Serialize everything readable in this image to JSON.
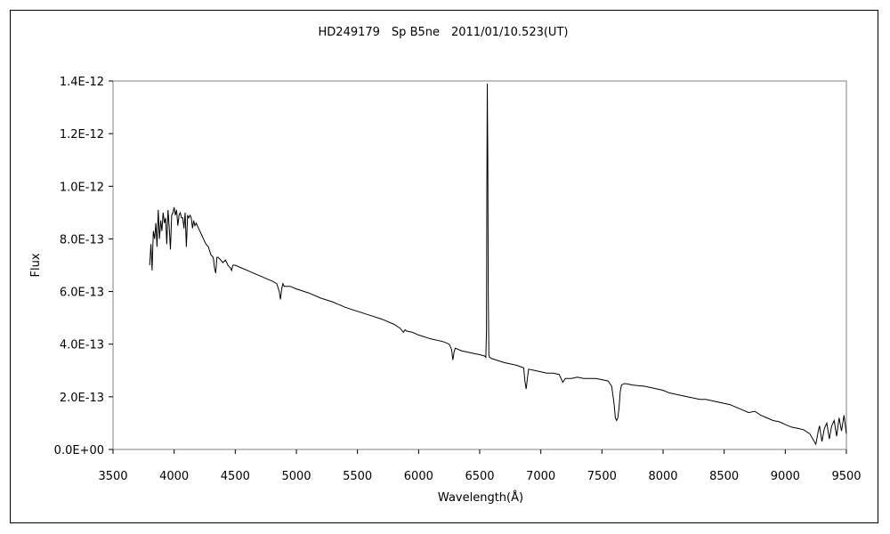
{
  "chart_data": {
    "type": "line",
    "title": "HD249179　Sp B5ne　2011/01/10.523(UT)",
    "xlabel": "Wavelength(Å)",
    "ylabel": "Flux",
    "xlim": [
      3500,
      9500
    ],
    "ylim": [
      0,
      1.4e-12
    ],
    "x_ticks": [
      "3500",
      "4000",
      "4500",
      "5000",
      "5500",
      "6000",
      "6500",
      "7000",
      "7500",
      "8000",
      "8500",
      "9000",
      "9500"
    ],
    "y_ticks": [
      "0.0E+00",
      "2.0E-13",
      "4.0E-13",
      "6.0E-13",
      "8.0E-13",
      "1.0E-12",
      "1.2E-12",
      "1.4E-12"
    ],
    "grid": false,
    "legend": "none",
    "series": [
      {
        "color": "#000000",
        "x": [
          3800,
          3810,
          3820,
          3830,
          3840,
          3850,
          3860,
          3870,
          3880,
          3890,
          3900,
          3910,
          3920,
          3930,
          3940,
          3950,
          3960,
          3970,
          3980,
          3990,
          4000,
          4010,
          4020,
          4030,
          4040,
          4050,
          4060,
          4070,
          4080,
          4090,
          4100,
          4110,
          4120,
          4130,
          4140,
          4150,
          4160,
          4170,
          4180,
          4190,
          4200,
          4220,
          4240,
          4260,
          4280,
          4300,
          4320,
          4330,
          4340,
          4350,
          4360,
          4380,
          4400,
          4420,
          4440,
          4460,
          4470,
          4480,
          4500,
          4550,
          4600,
          4650,
          4700,
          4750,
          4800,
          4840,
          4860,
          4870,
          4880,
          4890,
          4900,
          4950,
          5000,
          5100,
          5200,
          5300,
          5400,
          5500,
          5600,
          5700,
          5800,
          5850,
          5875,
          5890,
          5900,
          5950,
          6000,
          6100,
          6200,
          6250,
          6270,
          6280,
          6290,
          6300,
          6350,
          6400,
          6450,
          6500,
          6540,
          6550,
          6555,
          6558,
          6562,
          6566,
          6570,
          6575,
          6580,
          6600,
          6700,
          6800,
          6860,
          6870,
          6880,
          6890,
          6900,
          6950,
          7000,
          7050,
          7100,
          7150,
          7180,
          7200,
          7250,
          7300,
          7350,
          7400,
          7450,
          7500,
          7550,
          7580,
          7600,
          7610,
          7620,
          7630,
          7640,
          7650,
          7660,
          7680,
          7700,
          7750,
          7800,
          7850,
          7900,
          7950,
          8000,
          8050,
          8100,
          8150,
          8200,
          8250,
          8300,
          8350,
          8400,
          8450,
          8500,
          8550,
          8600,
          8650,
          8700,
          8750,
          8800,
          8850,
          8900,
          8950,
          9000,
          9050,
          9100,
          9150,
          9200,
          9250,
          9270,
          9280,
          9300,
          9320,
          9340,
          9360,
          9380,
          9400,
          9420,
          9440,
          9460,
          9480,
          9500
        ],
        "y": [
          7e-13,
          7.8e-13,
          6.8e-13,
          8.3e-13,
          8e-13,
          8.6e-13,
          7.7e-13,
          9.1e-13,
          8e-13,
          8.7e-13,
          8.3e-13,
          9e-13,
          8.6e-13,
          8.8e-13,
          7.8e-13,
          9.1e-13,
          8.4e-13,
          7.6e-13,
          8.9e-13,
          9e-13,
          9.2e-13,
          8.9e-13,
          9.1e-13,
          8.5e-13,
          8.9e-13,
          9e-13,
          8.8e-13,
          8.8e-13,
          8.4e-13,
          9e-13,
          7.7e-13,
          8.9e-13,
          8.8e-13,
          8.9e-13,
          8.8e-13,
          8.4e-13,
          8.7e-13,
          8.5e-13,
          8.6e-13,
          8.5e-13,
          8.4e-13,
          8.2e-13,
          8e-13,
          7.8e-13,
          7.7e-13,
          7.4e-13,
          7.3e-13,
          6.9e-13,
          6.7e-13,
          7.3e-13,
          7.3e-13,
          7.2e-13,
          7.1e-13,
          7.2e-13,
          7e-13,
          6.9e-13,
          6.8e-13,
          7e-13,
          7e-13,
          6.9e-13,
          6.8e-13,
          6.7e-13,
          6.6e-13,
          6.5e-13,
          6.4e-13,
          6.3e-13,
          6e-13,
          5.7e-13,
          6.1e-13,
          6.3e-13,
          6.2e-13,
          6.2e-13,
          6.1e-13,
          5.95e-13,
          5.75e-13,
          5.6e-13,
          5.4e-13,
          5.25e-13,
          5.1e-13,
          4.95e-13,
          4.75e-13,
          4.6e-13,
          4.45e-13,
          4.55e-13,
          4.5e-13,
          4.45e-13,
          4.35e-13,
          4.2e-13,
          4.1e-13,
          4e-13,
          3.8e-13,
          3.4e-13,
          3.7e-13,
          3.85e-13,
          3.75e-13,
          3.7e-13,
          3.65e-13,
          3.6e-13,
          3.55e-13,
          3.5e-13,
          4.5e-13,
          9.5e-13,
          1.39e-12,
          1.1e-12,
          6e-13,
          3.6e-13,
          3.5e-13,
          3.45e-13,
          3.3e-13,
          3.2e-13,
          3.1e-13,
          2.6e-13,
          2.3e-13,
          2.7e-13,
          3.05e-13,
          3e-13,
          2.95e-13,
          2.9e-13,
          2.9e-13,
          2.85e-13,
          2.55e-13,
          2.7e-13,
          2.7e-13,
          2.75e-13,
          2.7e-13,
          2.7e-13,
          2.7e-13,
          2.65e-13,
          2.6e-13,
          2.4e-13,
          1.7e-13,
          1.2e-13,
          1.1e-13,
          1.2e-13,
          1.6e-13,
          2.2e-13,
          2.45e-13,
          2.5e-13,
          2.5e-13,
          2.45e-13,
          2.42e-13,
          2.4e-13,
          2.35e-13,
          2.3e-13,
          2.25e-13,
          2.15e-13,
          2.1e-13,
          2.05e-13,
          2e-13,
          1.95e-13,
          1.9e-13,
          1.9e-13,
          1.85e-13,
          1.8e-13,
          1.75e-13,
          1.7e-13,
          1.6e-13,
          1.5e-13,
          1.4e-13,
          1.45e-13,
          1.3e-13,
          1.2e-13,
          1.1e-13,
          1.05e-13,
          9.5e-14,
          8.5e-14,
          8e-14,
          7.5e-14,
          6e-14,
          2e-14,
          7e-14,
          9e-14,
          3e-14,
          8e-14,
          1e-13,
          4e-14,
          9e-14,
          1.1e-13,
          5e-14,
          1.2e-13,
          7e-14,
          1.3e-13,
          6e-14
        ]
      }
    ]
  }
}
